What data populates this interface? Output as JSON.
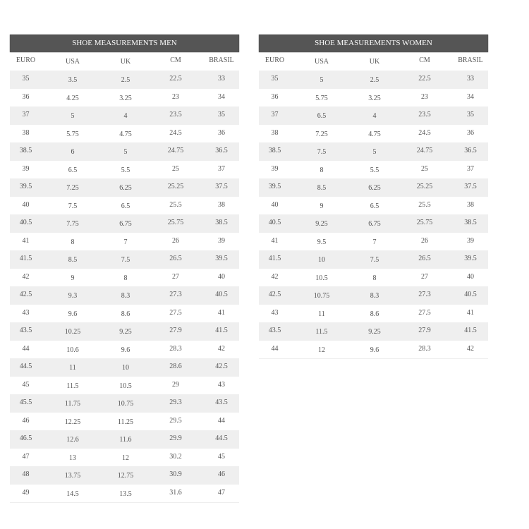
{
  "men": {
    "title": "SHOE MEASUREMENTS MEN",
    "columns": [
      "EURO",
      "USA",
      "UK",
      "CM",
      "BRASIL"
    ],
    "rows": [
      [
        "35",
        "3.5",
        "2.5",
        "22.5",
        "33"
      ],
      [
        "36",
        "4.25",
        "3.25",
        "23",
        "34"
      ],
      [
        "37",
        "5",
        "4",
        "23.5",
        "35"
      ],
      [
        "38",
        "5.75",
        "4.75",
        "24.5",
        "36"
      ],
      [
        "38.5",
        "6",
        "5",
        "24.75",
        "36.5"
      ],
      [
        "39",
        "6.5",
        "5.5",
        "25",
        "37"
      ],
      [
        "39.5",
        "7.25",
        "6.25",
        "25.25",
        "37.5"
      ],
      [
        "40",
        "7.5",
        "6.5",
        "25.5",
        "38"
      ],
      [
        "40.5",
        "7.75",
        "6.75",
        "25.75",
        "38.5"
      ],
      [
        "41",
        "8",
        "7",
        "26",
        "39"
      ],
      [
        "41.5",
        "8.5",
        "7.5",
        "26.5",
        "39.5"
      ],
      [
        "42",
        "9",
        "8",
        "27",
        "40"
      ],
      [
        "42.5",
        "9.3",
        "8.3",
        "27.3",
        "40.5"
      ],
      [
        "43",
        "9.6",
        "8.6",
        "27.5",
        "41"
      ],
      [
        "43.5",
        "10.25",
        "9.25",
        "27.9",
        "41.5"
      ],
      [
        "44",
        "10.6",
        "9.6",
        "28.3",
        "42"
      ],
      [
        "44.5",
        "11",
        "10",
        "28.6",
        "42.5"
      ],
      [
        "45",
        "11.5",
        "10.5",
        "29",
        "43"
      ],
      [
        "45.5",
        "11.75",
        "10.75",
        "29.3",
        "43.5"
      ],
      [
        "46",
        "12.25",
        "11.25",
        "29.5",
        "44"
      ],
      [
        "46.5",
        "12.6",
        "11.6",
        "29.9",
        "44.5"
      ],
      [
        "47",
        "13",
        "12",
        "30.2",
        "45"
      ],
      [
        "48",
        "13.75",
        "12.75",
        "30.9",
        "46"
      ],
      [
        "49",
        "14.5",
        "13.5",
        "31.6",
        "47"
      ]
    ]
  },
  "women": {
    "title": "SHOE MEASUREMENTS WOMEN",
    "columns": [
      "EURO",
      "USA",
      "UK",
      "CM",
      "BRASIL"
    ],
    "rows": [
      [
        "35",
        "5",
        "2.5",
        "22.5",
        "33"
      ],
      [
        "36",
        "5.75",
        "3.25",
        "23",
        "34"
      ],
      [
        "37",
        "6.5",
        "4",
        "23.5",
        "35"
      ],
      [
        "38",
        "7.25",
        "4.75",
        "24.5",
        "36"
      ],
      [
        "38.5",
        "7.5",
        "5",
        "24.75",
        "36.5"
      ],
      [
        "39",
        "8",
        "5.5",
        "25",
        "37"
      ],
      [
        "39.5",
        "8.5",
        "6.25",
        "25.25",
        "37.5"
      ],
      [
        "40",
        "9",
        "6.5",
        "25.5",
        "38"
      ],
      [
        "40.5",
        "9.25",
        "6.75",
        "25.75",
        "38.5"
      ],
      [
        "41",
        "9.5",
        "7",
        "26",
        "39"
      ],
      [
        "41.5",
        "10",
        "7.5",
        "26.5",
        "39.5"
      ],
      [
        "42",
        "10.5",
        "8",
        "27",
        "40"
      ],
      [
        "42.5",
        "10.75",
        "8.3",
        "27.3",
        "40.5"
      ],
      [
        "43",
        "11",
        "8.6",
        "27.5",
        "41"
      ],
      [
        "43.5",
        "11.5",
        "9.25",
        "27.9",
        "41.5"
      ],
      [
        "44",
        "12",
        "9.6",
        "28.3",
        "42"
      ]
    ]
  },
  "colors": {
    "header_bg": "#555555",
    "stripe": "#efefef",
    "text": "#555555"
  }
}
